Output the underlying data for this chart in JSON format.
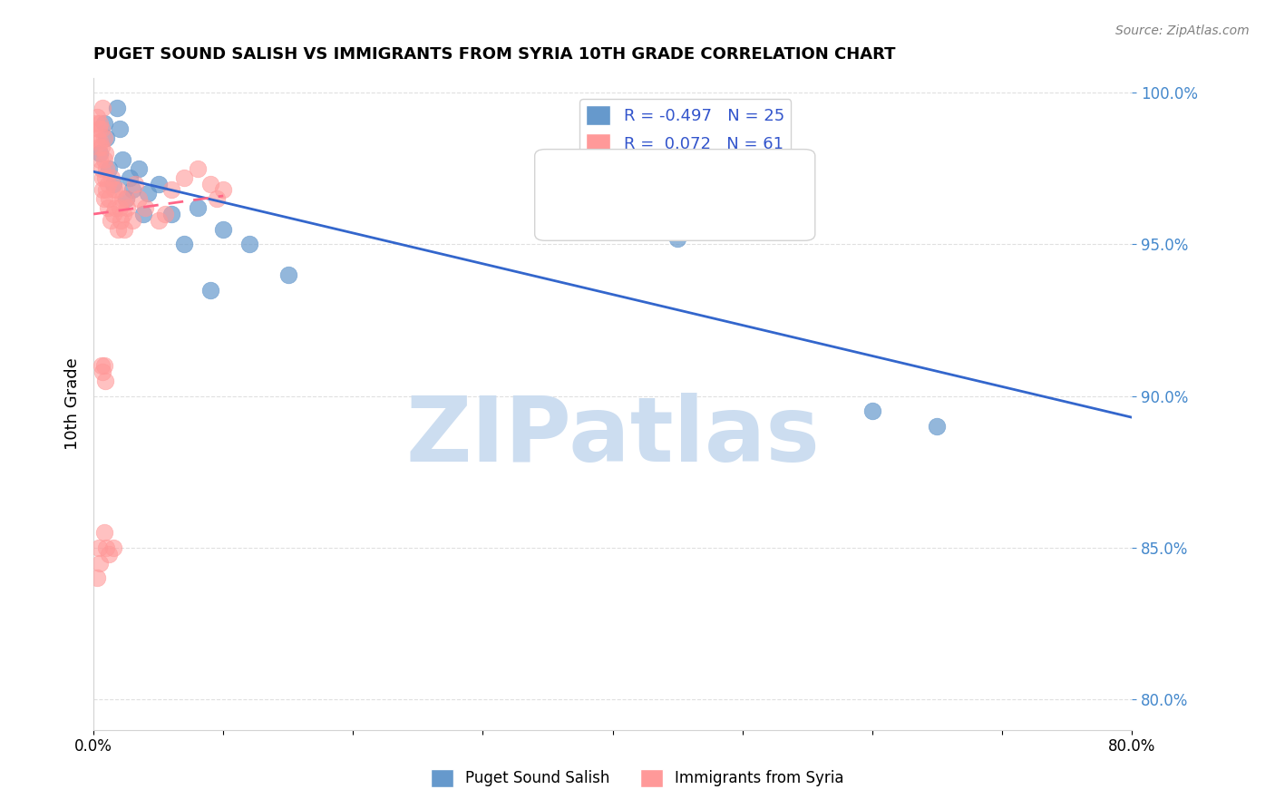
{
  "title": "PUGET SOUND SALISH VS IMMIGRANTS FROM SYRIA 10TH GRADE CORRELATION CHART",
  "source": "Source: ZipAtlas.com",
  "xlabel": "",
  "ylabel": "10th Grade",
  "xmin": 0.0,
  "xmax": 0.8,
  "ymin": 0.79,
  "ymax": 1.005,
  "yticks": [
    0.8,
    0.85,
    0.9,
    0.95,
    1.0
  ],
  "ytick_labels": [
    "80.0%",
    "85.0%",
    "90.0%",
    "95.0%",
    "100.0%"
  ],
  "xticks": [
    0.0,
    0.1,
    0.2,
    0.3,
    0.4,
    0.5,
    0.6,
    0.7,
    0.8
  ],
  "xtick_labels": [
    "0.0%",
    "",
    "",
    "",
    "",
    "",
    "",
    "",
    "80.0%"
  ],
  "blue_R": -0.497,
  "blue_N": 25,
  "pink_R": 0.072,
  "pink_N": 61,
  "blue_color": "#6699CC",
  "pink_color": "#FF9999",
  "blue_line_color": "#3366CC",
  "pink_line_color": "#FF6688",
  "watermark": "ZIPatlas",
  "watermark_color": "#CCDDF0",
  "blue_x": [
    0.005,
    0.008,
    0.01,
    0.012,
    0.015,
    0.018,
    0.02,
    0.022,
    0.025,
    0.028,
    0.03,
    0.035,
    0.038,
    0.042,
    0.05,
    0.06,
    0.07,
    0.08,
    0.09,
    0.1,
    0.12,
    0.15,
    0.45,
    0.6,
    0.65
  ],
  "blue_y": [
    0.98,
    0.99,
    0.985,
    0.975,
    0.97,
    0.995,
    0.988,
    0.978,
    0.965,
    0.972,
    0.968,
    0.975,
    0.96,
    0.967,
    0.97,
    0.96,
    0.95,
    0.962,
    0.935,
    0.955,
    0.95,
    0.94,
    0.952,
    0.895,
    0.89
  ],
  "pink_x": [
    0.002,
    0.003,
    0.003,
    0.004,
    0.004,
    0.005,
    0.005,
    0.005,
    0.006,
    0.006,
    0.006,
    0.007,
    0.007,
    0.007,
    0.008,
    0.008,
    0.008,
    0.009,
    0.009,
    0.01,
    0.01,
    0.011,
    0.011,
    0.012,
    0.013,
    0.014,
    0.015,
    0.016,
    0.017,
    0.018,
    0.019,
    0.02,
    0.021,
    0.022,
    0.023,
    0.024,
    0.025,
    0.026,
    0.03,
    0.032,
    0.035,
    0.04,
    0.05,
    0.055,
    0.06,
    0.07,
    0.08,
    0.09,
    0.095,
    0.1,
    0.008,
    0.009,
    0.006,
    0.007,
    0.008,
    0.004,
    0.005,
    0.003,
    0.01,
    0.012,
    0.015
  ],
  "pink_y": [
    0.99,
    0.985,
    0.992,
    0.988,
    0.982,
    0.978,
    0.99,
    0.984,
    0.975,
    0.988,
    0.982,
    0.995,
    0.972,
    0.968,
    0.985,
    0.965,
    0.978,
    0.972,
    0.98,
    0.968,
    0.975,
    0.962,
    0.97,
    0.965,
    0.958,
    0.972,
    0.96,
    0.968,
    0.962,
    0.968,
    0.955,
    0.962,
    0.958,
    0.965,
    0.96,
    0.955,
    0.965,
    0.962,
    0.958,
    0.97,
    0.965,
    0.962,
    0.958,
    0.96,
    0.968,
    0.972,
    0.975,
    0.97,
    0.965,
    0.968,
    0.91,
    0.905,
    0.91,
    0.908,
    0.855,
    0.85,
    0.845,
    0.84,
    0.85,
    0.848,
    0.85
  ]
}
